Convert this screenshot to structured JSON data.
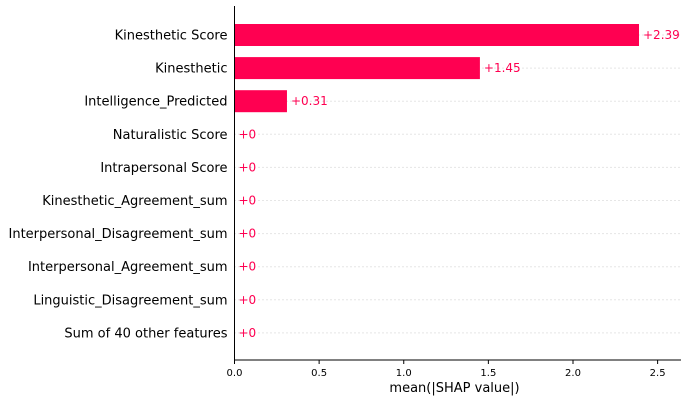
{
  "chart_data": {
    "type": "bar",
    "orientation": "horizontal",
    "categories": [
      "Kinesthetic Score",
      "Kinesthetic",
      "Intelligence_Predicted",
      "Naturalistic Score",
      "Intrapersonal Score",
      "Kinesthetic_Agreement_sum",
      "Interpersonal_Disagreement_sum",
      "Interpersonal_Agreement_sum",
      "Linguistic_Disagreement_sum",
      "Sum of 40 other features"
    ],
    "values": [
      2.39,
      1.45,
      0.31,
      0,
      0,
      0,
      0,
      0,
      0,
      0
    ],
    "value_labels": [
      "+2.39",
      "+1.45",
      "+0.31",
      "+0",
      "+0",
      "+0",
      "+0",
      "+0",
      "+0",
      "+0"
    ],
    "xlabel": "mean(|SHAP value|)",
    "ylabel": "",
    "title": "",
    "xlim": [
      0,
      2.65
    ],
    "xticks": [
      "0.0",
      "0.5",
      "1.0",
      "1.5",
      "2.0",
      "2.5"
    ],
    "xtick_values": [
      0,
      0.5,
      1.0,
      1.5,
      2.0,
      2.5
    ],
    "grid": "dotted horizontal row guides",
    "colors": {
      "bar": "#ff0051",
      "value_text": "#ff0051",
      "guide": "#cccccc",
      "axis": "#000000"
    }
  }
}
